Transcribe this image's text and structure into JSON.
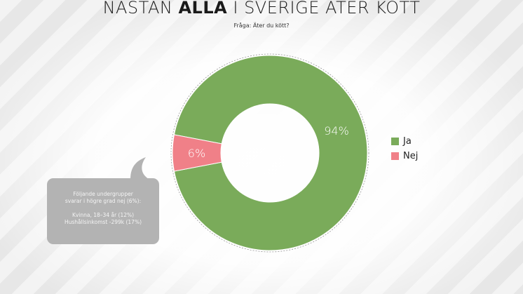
{
  "header": {
    "title_prefix": "NÄSTAN",
    "title_bold": "ALLA",
    "title_suffix": "I SVERIGE ÄTER KÖTT",
    "subtitle": "Fråga: Äter du kött?"
  },
  "chart_data": {
    "type": "pie",
    "categories": [
      "Ja",
      "Nej"
    ],
    "values": [
      94,
      6
    ],
    "labels": [
      "94%",
      "6%"
    ],
    "colors": [
      "#7aab5a",
      "#f08088"
    ],
    "legend_position": "right"
  },
  "legend": {
    "items": [
      {
        "label": "Ja",
        "color": "#7aab5a"
      },
      {
        "label": "Nej",
        "color": "#f08088"
      }
    ]
  },
  "callout": {
    "line1": "Följande undergrupper",
    "line2": "svarar i högre grad nej (6%):",
    "line3": "Kvinna, 18–34 år (12%)",
    "line4": "Hushållsinkomst -299k (17%)",
    "color": "#b3b3b3"
  }
}
